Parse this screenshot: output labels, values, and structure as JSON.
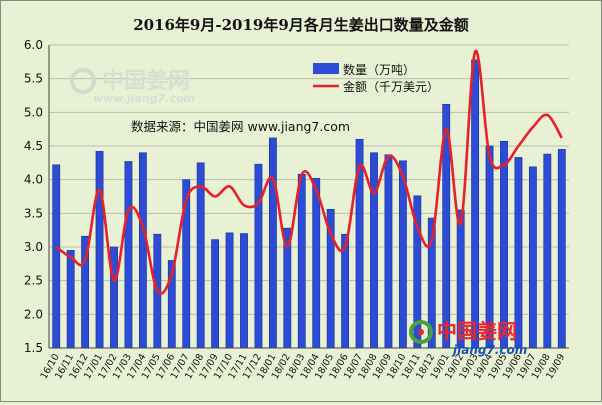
{
  "chart_data": {
    "type": "bar",
    "title": "2016年9月-2019年9月各月生姜出口数量及金额",
    "source": "数据来源：中国姜网 www.jiang7.com",
    "watermark": {
      "cn": "中国姜网",
      "en": "www.jiang7.com"
    },
    "logo": {
      "cn": "中国姜网",
      "en": "jiang7.com"
    },
    "ylim": [
      1.5,
      6.0
    ],
    "yticks": [
      "1.5",
      "2.0",
      "2.5",
      "3.0",
      "3.5",
      "4.0",
      "4.5",
      "5.0",
      "5.5",
      "6.0"
    ],
    "grid": true,
    "legend_position": "top-center",
    "categories": [
      "16/10",
      "16/11",
      "16/12",
      "17/01",
      "17/02",
      "17/03",
      "17/04",
      "17/05",
      "17/06",
      "17/07",
      "17/08",
      "17/09",
      "17/10",
      "17/11",
      "17/12",
      "18/01",
      "18/02",
      "18/03",
      "18/04",
      "18/05",
      "18/06",
      "18/07",
      "18/08",
      "18/09",
      "18/10",
      "18/11",
      "18/12",
      "19/01",
      "19/02",
      "19/03",
      "19/04",
      "19/05",
      "19/06",
      "19/07",
      "19/08",
      "19/09"
    ],
    "series": [
      {
        "name": "数量（万吨）",
        "type": "bar",
        "color": "#2c4cd6",
        "values": [
          4.22,
          2.95,
          3.16,
          4.42,
          3.0,
          4.27,
          4.4,
          3.19,
          2.8,
          4.0,
          4.25,
          3.11,
          3.21,
          3.2,
          4.23,
          4.62,
          3.28,
          4.08,
          4.02,
          3.56,
          3.19,
          4.6,
          4.4,
          4.37,
          4.28,
          3.76,
          3.43,
          5.12,
          3.55,
          5.78,
          4.5,
          4.57,
          4.33,
          4.19,
          4.38,
          4.45
        ]
      },
      {
        "name": "金额（千万美元）",
        "type": "line",
        "color": "#e8202a",
        "values": [
          3.0,
          2.85,
          2.8,
          3.85,
          2.5,
          3.55,
          3.3,
          2.35,
          2.6,
          3.7,
          3.9,
          3.75,
          3.9,
          3.62,
          3.65,
          4.02,
          3.0,
          4.08,
          3.85,
          3.2,
          3.0,
          4.2,
          3.8,
          4.35,
          4.05,
          3.3,
          3.1,
          4.75,
          3.35,
          5.9,
          4.35,
          4.22,
          4.5,
          4.78,
          4.96,
          4.62
        ]
      }
    ]
  }
}
